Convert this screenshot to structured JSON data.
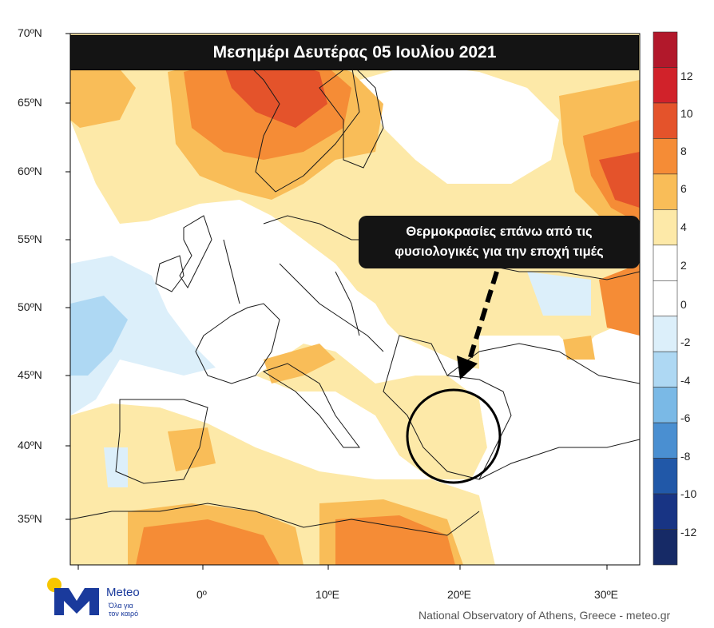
{
  "title": "Μεσημέρι Δευτέρας 05 Ιουλίου 2021",
  "callout": {
    "line1": "Θερμοκρασίες επάνω από τις",
    "line2": "φυσιολογικές για την εποχή τιμές"
  },
  "lat_labels": [
    "70ºN",
    "65ºN",
    "60ºN",
    "55ºN",
    "50ºN",
    "45ºN",
    "40ºN",
    "35ºN"
  ],
  "lon_labels": [
    "0º",
    "10ºE",
    "20ºE",
    "30ºE"
  ],
  "colorbar": {
    "labels": [
      "12",
      "10",
      "8",
      "6",
      "4",
      "2",
      "0",
      "-2",
      "-4",
      "-6",
      "-8",
      "-10",
      "-12"
    ],
    "colors": [
      "#b2182b",
      "#d1222a",
      "#e4532b",
      "#f58c36",
      "#f9bd58",
      "#fde9a8",
      "#ffffff",
      "#ffffff",
      "#dceffa",
      "#aed8f3",
      "#7ab9e6",
      "#4a8fd1",
      "#2158a8",
      "#183484",
      "#162a66"
    ]
  },
  "logo": {
    "name": "Meteo",
    "tagline": "Όλα για τον καιρό"
  },
  "credit": "National Observatory of Athens, Greece - meteo.gr"
}
